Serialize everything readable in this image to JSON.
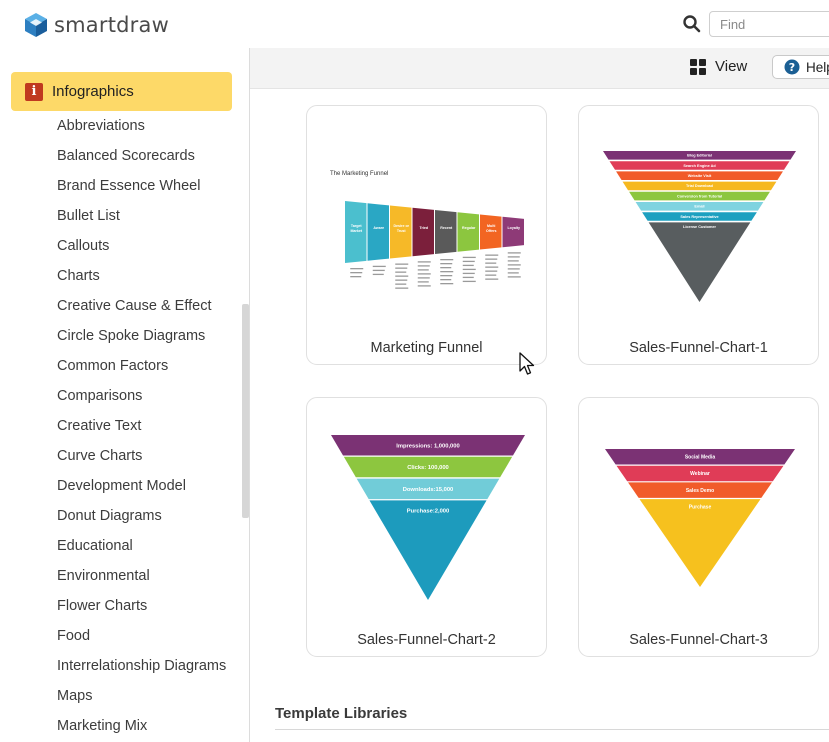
{
  "app": {
    "name": "smartdraw"
  },
  "search": {
    "placeholder": "Find",
    "icon": "search-icon"
  },
  "toolbar": {
    "view_label": "View",
    "help_label": "Help"
  },
  "sidebar": {
    "category": {
      "icon_glyph": "i",
      "label": "Infographics"
    },
    "items": [
      "Abbreviations",
      "Balanced Scorecards",
      "Brand Essence Wheel",
      "Bullet List",
      "Callouts",
      "Charts",
      "Creative Cause & Effect",
      "Circle Spoke Diagrams",
      "Common Factors",
      "Comparisons",
      "Creative Text",
      "Curve Charts",
      "Development Model",
      "Donut Diagrams",
      "Educational",
      "Environmental",
      "Flower Charts",
      "Food",
      "Interrelationship Diagrams",
      "Maps",
      "Marketing Mix"
    ]
  },
  "templates": [
    {
      "title": "Marketing Funnel",
      "thumb": {
        "heading": "The Marketing Funnel",
        "stages": [
          {
            "label": "Target Market",
            "color": "#4bbfce"
          },
          {
            "label": "Aware",
            "color": "#2aa7c4"
          },
          {
            "label": "Desire or Trust",
            "color": "#f6b928"
          },
          {
            "label": "Tried",
            "color": "#7b1f3b"
          },
          {
            "label": "Recent",
            "color": "#5a5a5a"
          },
          {
            "label": "Regular",
            "color": "#8cc63f"
          },
          {
            "label": "Multi Offers",
            "color": "#f26522"
          },
          {
            "label": "Loyalty",
            "color": "#8e3a77"
          }
        ]
      }
    },
    {
      "title": "Sales-Funnel-Chart-1",
      "thumb": {
        "stages": [
          {
            "label": "Blog Editorial",
            "color": "#7b3274"
          },
          {
            "label": "Search Engine Ad",
            "color": "#e03c57"
          },
          {
            "label": "Website Visit",
            "color": "#f15b2a"
          },
          {
            "label": "Trial Download",
            "color": "#f6b820"
          },
          {
            "label": "Conversion from Tutorial",
            "color": "#8dc63f"
          },
          {
            "label": "Email",
            "color": "#7fd3e0"
          },
          {
            "label": "Sales Representative",
            "color": "#1da0c0"
          },
          {
            "label": "License Customer",
            "color": "#585d5f"
          }
        ]
      }
    },
    {
      "title": "Sales-Funnel-Chart-2",
      "thumb": {
        "stages": [
          {
            "label": "Impressions: 1,000,000",
            "color": "#7b3274"
          },
          {
            "label": "Clicks: 100,000",
            "color": "#8dc63f"
          },
          {
            "label": "Downloads:15,000",
            "color": "#71ccd8"
          },
          {
            "label": "Purchase:2,000",
            "color": "#1d9bbd"
          }
        ]
      }
    },
    {
      "title": "Sales-Funnel-Chart-3",
      "thumb": {
        "stages": [
          {
            "label": "Social Media",
            "color": "#7b3274"
          },
          {
            "label": "Webinar",
            "color": "#e03c57"
          },
          {
            "label": "Sales Demo",
            "color": "#f15b2a"
          },
          {
            "label": "Purchase",
            "color": "#f6c11e"
          }
        ]
      }
    }
  ],
  "section": {
    "title": "Template Libraries"
  },
  "colors": {
    "category_highlight": "#fdd968",
    "category_icon": "#c0391f",
    "help_icon": "#1b6fa8",
    "logo_blue": "#2d7fc1"
  }
}
